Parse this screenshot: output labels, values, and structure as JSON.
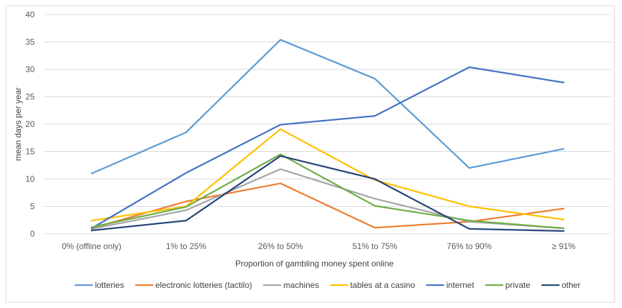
{
  "chart_data": {
    "type": "line",
    "title": "",
    "xlabel": "Proportion of gambling money spent online",
    "ylabel": "mean days per year",
    "ylim": [
      0,
      40
    ],
    "yticks": [
      "0",
      "5",
      "10",
      "15",
      "20",
      "25",
      "30",
      "35",
      "40"
    ],
    "categories": [
      "0% (offline only)",
      "1% to 25%",
      "26% to 50%",
      "51% to 75%",
      "76% to 90%",
      "≥ 91%"
    ],
    "grid": true,
    "legend_position": "bottom",
    "series": [
      {
        "name": "lotteries",
        "color": "#5b9bd5",
        "values": [
          11.0,
          18.5,
          35.4,
          28.3,
          12.0,
          15.5
        ]
      },
      {
        "name": "electronic lotteries (tactilo)",
        "color": "#ed7d31",
        "values": [
          1.0,
          5.9,
          9.2,
          1.1,
          2.2,
          4.6
        ]
      },
      {
        "name": "machines",
        "color": "#a5a5a5",
        "values": [
          0.9,
          4.3,
          11.8,
          6.4,
          2.2,
          1.0
        ]
      },
      {
        "name": "tables at a casino",
        "color": "#ffc000",
        "values": [
          2.4,
          5.0,
          19.1,
          9.8,
          5.0,
          2.6
        ]
      },
      {
        "name": "internet",
        "color": "#4472c4",
        "values": [
          1.0,
          11.1,
          19.9,
          21.5,
          30.4,
          27.6
        ]
      },
      {
        "name": "private",
        "color": "#70ad47",
        "values": [
          1.2,
          4.9,
          14.5,
          5.1,
          2.4,
          1.0
        ]
      },
      {
        "name": "other",
        "color": "#264478",
        "values": [
          0.6,
          2.4,
          14.2,
          10.0,
          0.9,
          0.5
        ]
      }
    ]
  }
}
